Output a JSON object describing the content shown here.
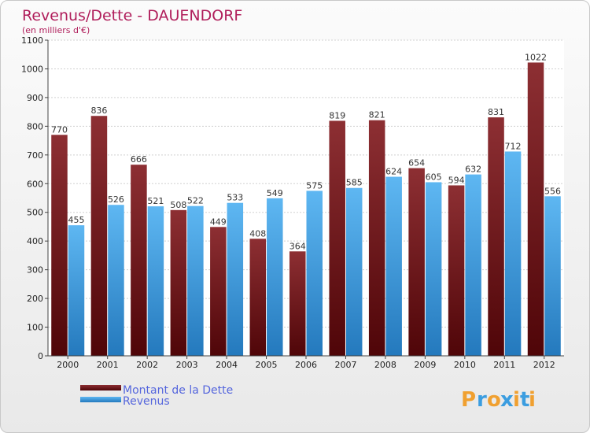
{
  "chart_data": {
    "type": "bar",
    "title": "Revenus/Dette - DAUENDORF",
    "subtitle": "(en milliers d'€)",
    "categories": [
      "2000",
      "2001",
      "2002",
      "2003",
      "2004",
      "2005",
      "2006",
      "2007",
      "2008",
      "2009",
      "2010",
      "2011",
      "2012"
    ],
    "series": [
      {
        "name": "Montant de la Dette",
        "values": [
          770,
          836,
          666,
          508,
          449,
          408,
          364,
          819,
          821,
          654,
          594,
          831,
          1022
        ],
        "color": "#7a1a1f"
      },
      {
        "name": "Revenus",
        "values": [
          455,
          526,
          521,
          522,
          533,
          549,
          575,
          585,
          624,
          605,
          632,
          712,
          556
        ],
        "color": "#3f9fe6"
      }
    ],
    "ylim": [
      0,
      1100
    ],
    "yticks": [
      0,
      100,
      200,
      300,
      400,
      500,
      600,
      700,
      800,
      900,
      1000,
      1100
    ],
    "grid": true,
    "legend": "bottom-left"
  },
  "brand": {
    "logo_letters": [
      "P",
      "r",
      "o",
      "x",
      "i",
      "t",
      "i"
    ],
    "logo_colors": [
      "#f0a030",
      "#3b9de0",
      "#f0a030",
      "#3b9de0",
      "#f0a030",
      "#3b9de0",
      "#f0a030"
    ]
  }
}
